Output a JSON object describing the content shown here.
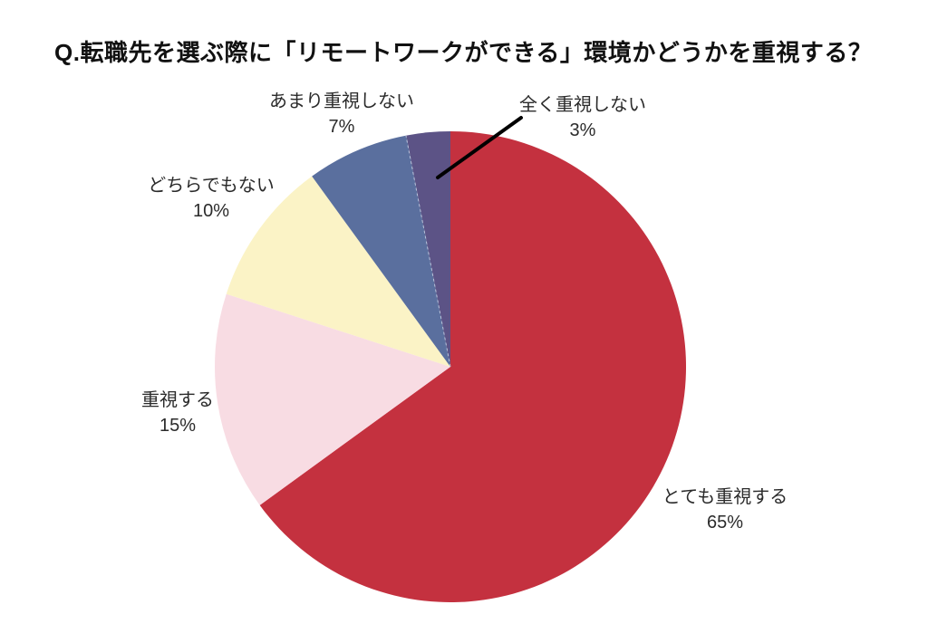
{
  "title": "Q.転職先を選ぶ際に「リモートワークができる」環境かどうかを重視する？",
  "chart_data": {
    "type": "pie",
    "title": "Q.転職先を選ぶ際に「リモートワークができる」環境かどうかを重視する？",
    "start_angle_deg": 0,
    "direction": "clockwise",
    "background": "#FFFFFF",
    "legend_position": "outside-labels",
    "slices": [
      {
        "label": "とても重視する",
        "value_pct": 65,
        "pct_text": "65%",
        "color": "#C4313F"
      },
      {
        "label": "重視する",
        "value_pct": 15,
        "pct_text": "15%",
        "color": "#F8DCE3"
      },
      {
        "label": "どちらでもない",
        "value_pct": 10,
        "pct_text": "10%",
        "color": "#FBF3C6"
      },
      {
        "label": "あまり重視しない",
        "value_pct": 7,
        "pct_text": "7%",
        "color": "#5A6F9E"
      },
      {
        "label": "全く重視しない",
        "value_pct": 3,
        "pct_text": "3%",
        "color": "#5C5386"
      }
    ],
    "annotation": {
      "target_slice": "全く重視しない",
      "leader_line_color": "#000000"
    }
  }
}
